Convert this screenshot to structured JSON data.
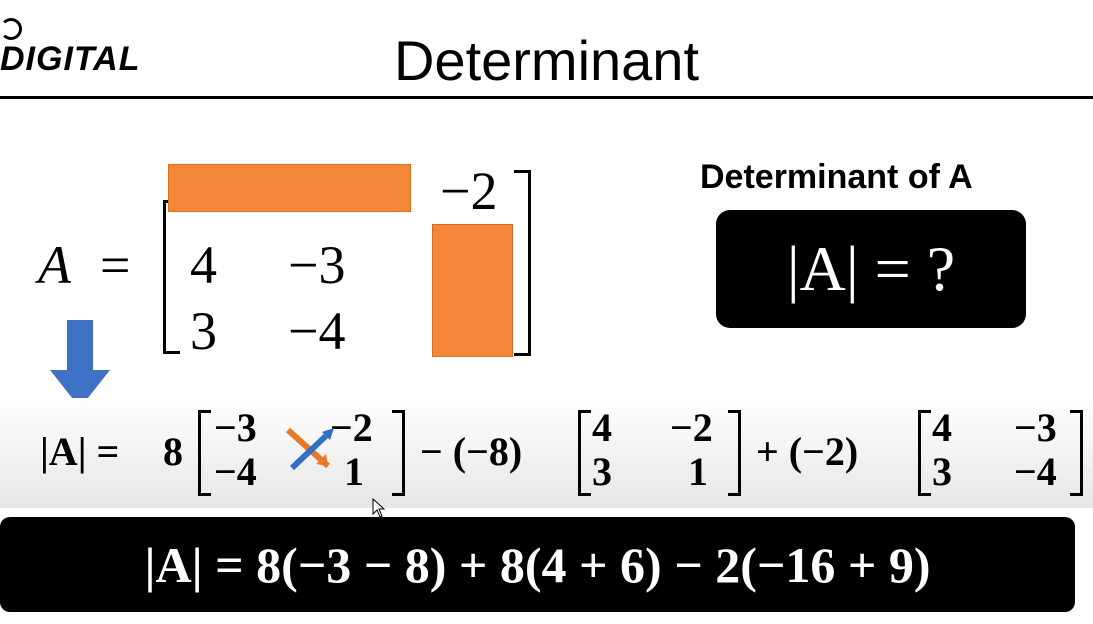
{
  "header": {
    "logo_text": "DIGITAL",
    "title": "Determinant"
  },
  "matrix": {
    "name": "A",
    "equals": "=",
    "top_right": "−2",
    "rows": [
      [
        "4",
        "−3"
      ],
      [
        "3",
        "−4"
      ]
    ]
  },
  "determinant_panel": {
    "label": "Determinant of A",
    "expression": "|A| = ?"
  },
  "expansion": {
    "lhs": "|A| =",
    "coef1": "8",
    "m1": [
      [
        "−3",
        "−2"
      ],
      [
        "−4",
        "1"
      ]
    ],
    "op2": "− (−8)",
    "m2": [
      [
        "4",
        "−2"
      ],
      [
        "3",
        "1"
      ]
    ],
    "op3": "+ (−2)",
    "m3": [
      [
        "4",
        "−3"
      ],
      [
        "3",
        "−4"
      ]
    ]
  },
  "result": {
    "expression": "|A| = 8(−3 − 8) + 8(4 + 6) − 2(−16 + 9)"
  },
  "colors": {
    "highlight": "#f4873a",
    "arrow_blue": "#3f72c4",
    "panel": "#000000"
  }
}
